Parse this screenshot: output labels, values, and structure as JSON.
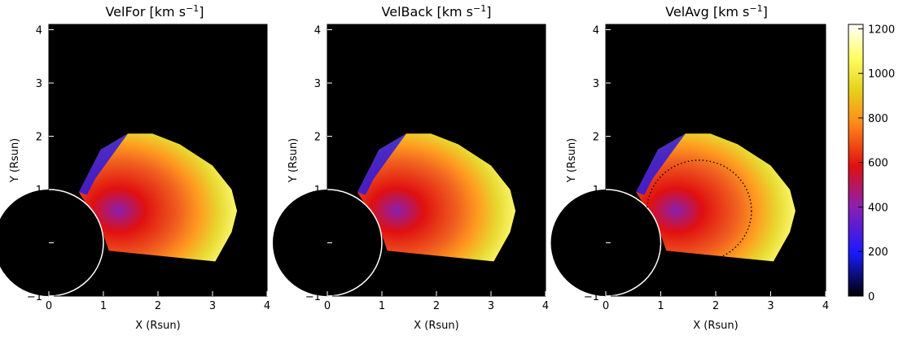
{
  "chart_data": [
    {
      "type": "heatmap",
      "title": "VelFor [km s",
      "title_exp": "−1",
      "title_close": "]",
      "xlabel": "X (Rsun)",
      "ylabel": "Y (Rsun)",
      "xlim": [
        0,
        4
      ],
      "ylim": [
        -1,
        4.1
      ],
      "xticks": [
        "0",
        "1",
        "2",
        "3",
        "4"
      ],
      "yticks": [
        "−1",
        "0",
        "1",
        "2",
        "3",
        "4"
      ],
      "sun_radius": 1,
      "dotted_circle": false
    },
    {
      "type": "heatmap",
      "title": "VelBack [km s",
      "title_exp": "−1",
      "title_close": "]",
      "xlabel": "X (Rsun)",
      "ylabel": "Y (Rsun)",
      "xlim": [
        0,
        4
      ],
      "ylim": [
        -1,
        4.1
      ],
      "xticks": [
        "0",
        "1",
        "2",
        "3",
        "4"
      ],
      "yticks": [
        "−1",
        "0",
        "1",
        "2",
        "3",
        "4"
      ],
      "sun_radius": 1,
      "dotted_circle": false
    },
    {
      "type": "heatmap",
      "title": "VelAvg [km s",
      "title_exp": "−1",
      "title_close": "]",
      "xlabel": "X (Rsun)",
      "ylabel": "Y (Rsun)",
      "xlim": [
        0,
        4
      ],
      "ylim": [
        -1,
        4.1
      ],
      "xticks": [
        "0",
        "1",
        "2",
        "3",
        "4"
      ],
      "yticks": [
        "−1",
        "0",
        "1",
        "2",
        "3",
        "4"
      ],
      "sun_radius": 1,
      "dotted_circle": true,
      "dotted_circle_center": [
        1.7,
        0.6
      ],
      "dotted_circle_radius": 0.95
    }
  ],
  "colorbar": {
    "range": [
      0,
      1220
    ],
    "ticks": [
      "0",
      "200",
      "400",
      "600",
      "800",
      "1000",
      "1200"
    ],
    "colors": [
      "#000000",
      "#1a1aff",
      "#8b1fb0",
      "#e01010",
      "#ff8c1a",
      "#e5d21a",
      "#ffff66",
      "#ffffff"
    ]
  }
}
